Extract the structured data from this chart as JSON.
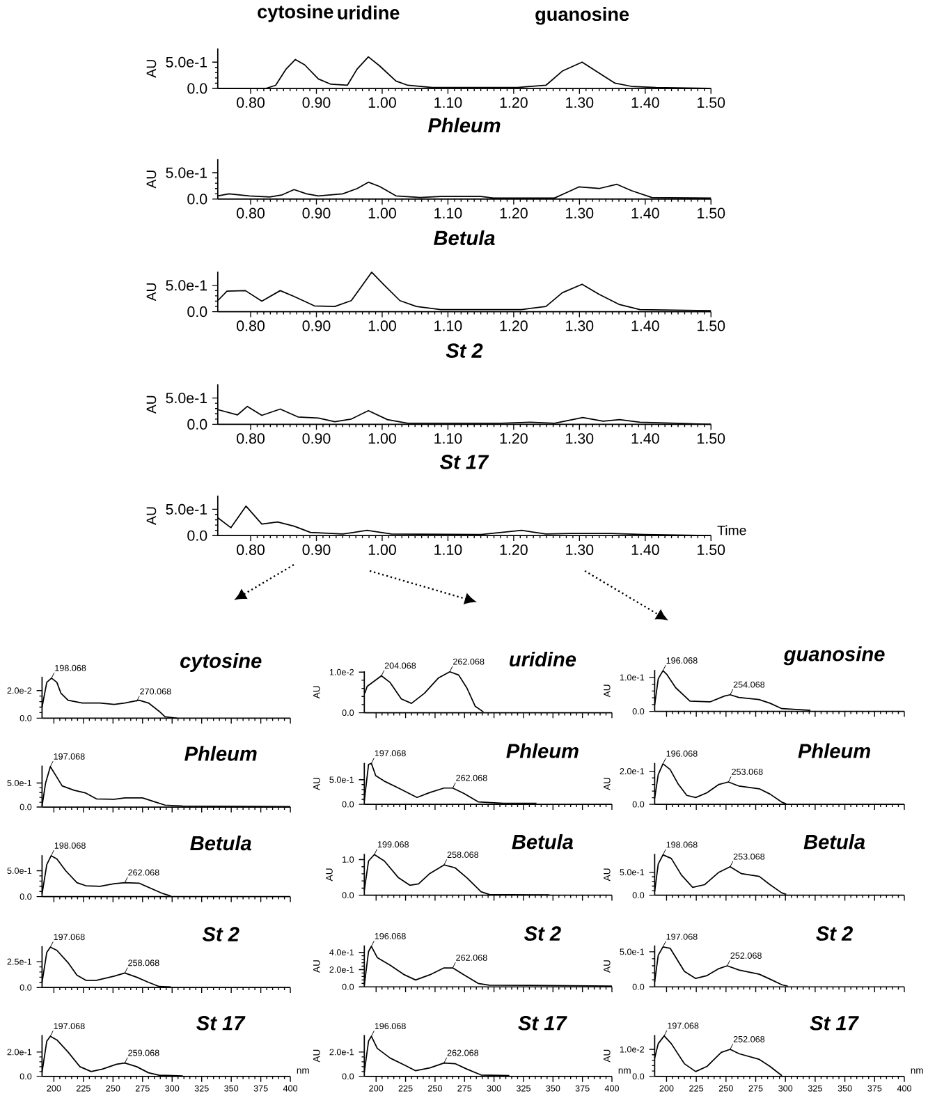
{
  "chart_data": [
    {
      "type": "line",
      "ylabel": "AU",
      "color": "#000000",
      "xlim": [
        0.75,
        1.5
      ],
      "ylim": [
        0,
        0.76
      ],
      "xticks": [
        {
          "value": 0.8,
          "label": "0.80"
        },
        {
          "value": 0.9,
          "label": "0.90"
        },
        {
          "value": 1.0,
          "label": "1.00"
        },
        {
          "value": 1.1,
          "label": "1.10"
        },
        {
          "value": 1.2,
          "label": "1.20"
        },
        {
          "value": 1.3,
          "label": "1.30"
        },
        {
          "value": 1.4,
          "label": "1.40"
        },
        {
          "value": 1.5,
          "label": "1.50"
        }
      ],
      "yticks": [
        {
          "value": 0,
          "label": "0.0"
        },
        {
          "value": 0.5,
          "label": "5.0e-1"
        }
      ],
      "annotations": [
        {
          "text": "cytosine",
          "x": 0.868,
          "y": 0.55
        },
        {
          "text": "uridine",
          "x": 0.979,
          "y": 0.6
        },
        {
          "text": "guanosine",
          "x": 1.304,
          "y": 0.5
        }
      ],
      "x": [
        0.75,
        0.823,
        0.838,
        0.854,
        0.868,
        0.882,
        0.903,
        0.922,
        0.947,
        0.962,
        0.979,
        0.996,
        1.021,
        1.039,
        1.076,
        1.206,
        1.249,
        1.274,
        1.304,
        1.33,
        1.354,
        1.379,
        1.416,
        1.5
      ],
      "values": [
        0,
        0,
        0.06,
        0.37,
        0.55,
        0.45,
        0.18,
        0.08,
        0.06,
        0.37,
        0.6,
        0.43,
        0.14,
        0.06,
        0.02,
        0.02,
        0.06,
        0.33,
        0.5,
        0.29,
        0.1,
        0.04,
        0.02,
        0
      ]
    },
    {
      "type": "line",
      "title": "*Phleum*",
      "ylabel": "AU",
      "color": "#000000",
      "xlim": [
        0.75,
        1.5
      ],
      "ylim": [
        0,
        0.76
      ],
      "xticks": [
        {
          "value": 0.8,
          "label": "0.80"
        },
        {
          "value": 0.9,
          "label": "0.90"
        },
        {
          "value": 1.0,
          "label": "1.00"
        },
        {
          "value": 1.1,
          "label": "1.10"
        },
        {
          "value": 1.2,
          "label": "1.20"
        },
        {
          "value": 1.3,
          "label": "1.30"
        },
        {
          "value": 1.4,
          "label": "1.40"
        },
        {
          "value": 1.5,
          "label": "1.50"
        }
      ],
      "yticks": [
        {
          "value": 0,
          "label": "0.0"
        },
        {
          "value": 0.5,
          "label": "5.0e-1"
        }
      ],
      "x": [
        0.75,
        0.767,
        0.798,
        0.829,
        0.848,
        0.866,
        0.885,
        0.903,
        0.94,
        0.962,
        0.979,
        0.996,
        1.021,
        1.058,
        1.089,
        1.15,
        1.169,
        1.262,
        1.28,
        1.299,
        1.33,
        1.357,
        1.379,
        1.41,
        1.5
      ],
      "values": [
        0.06,
        0.1,
        0.06,
        0.04,
        0.08,
        0.18,
        0.1,
        0.06,
        0.1,
        0.2,
        0.32,
        0.24,
        0.06,
        0.03,
        0.05,
        0.05,
        0.02,
        0.02,
        0.12,
        0.23,
        0.2,
        0.28,
        0.16,
        0.03,
        0.02
      ]
    },
    {
      "type": "line",
      "title": "*Betula*",
      "ylabel": "AU",
      "color": "#000000",
      "xlim": [
        0.75,
        1.5
      ],
      "ylim": [
        0,
        0.76
      ],
      "xticks": [
        {
          "value": 0.8,
          "label": "0.80"
        },
        {
          "value": 0.9,
          "label": "0.90"
        },
        {
          "value": 1.0,
          "label": "1.00"
        },
        {
          "value": 1.1,
          "label": "1.10"
        },
        {
          "value": 1.2,
          "label": "1.20"
        },
        {
          "value": 1.3,
          "label": "1.30"
        },
        {
          "value": 1.4,
          "label": "1.40"
        },
        {
          "value": 1.5,
          "label": "1.50"
        }
      ],
      "yticks": [
        {
          "value": 0,
          "label": "0.0"
        },
        {
          "value": 0.5,
          "label": "5.0e-1"
        }
      ],
      "x": [
        0.75,
        0.764,
        0.792,
        0.817,
        0.845,
        0.866,
        0.897,
        0.928,
        0.953,
        0.971,
        0.984,
        1.002,
        1.027,
        1.052,
        1.089,
        1.212,
        1.249,
        1.274,
        1.304,
        1.33,
        1.36,
        1.392,
        1.5
      ],
      "values": [
        0.21,
        0.39,
        0.4,
        0.2,
        0.4,
        0.29,
        0.11,
        0.1,
        0.21,
        0.52,
        0.75,
        0.52,
        0.21,
        0.1,
        0.04,
        0.04,
        0.1,
        0.36,
        0.52,
        0.33,
        0.14,
        0.04,
        0.02
      ]
    },
    {
      "type": "line",
      "title": "*St 2*",
      "ylabel": "AU",
      "color": "#000000",
      "xlim": [
        0.75,
        1.5
      ],
      "ylim": [
        0,
        0.76
      ],
      "xticks": [
        {
          "value": 0.8,
          "label": "0.80"
        },
        {
          "value": 0.9,
          "label": "0.90"
        },
        {
          "value": 1.0,
          "label": "1.00"
        },
        {
          "value": 1.1,
          "label": "1.10"
        },
        {
          "value": 1.2,
          "label": "1.20"
        },
        {
          "value": 1.3,
          "label": "1.30"
        },
        {
          "value": 1.4,
          "label": "1.40"
        },
        {
          "value": 1.5,
          "label": "1.50"
        }
      ],
      "yticks": [
        {
          "value": 0,
          "label": "0.0"
        },
        {
          "value": 0.5,
          "label": "5.0e-1"
        }
      ],
      "x": [
        0.75,
        0.78,
        0.795,
        0.817,
        0.845,
        0.872,
        0.903,
        0.928,
        0.953,
        0.979,
        1.008,
        1.039,
        1.181,
        1.225,
        1.262,
        1.305,
        1.336,
        1.361,
        1.392,
        1.447,
        1.5
      ],
      "values": [
        0.28,
        0.18,
        0.34,
        0.17,
        0.29,
        0.14,
        0.12,
        0.05,
        0.1,
        0.26,
        0.09,
        0.02,
        0.02,
        0.04,
        0.02,
        0.13,
        0.06,
        0.09,
        0.04,
        0.02,
        0
      ]
    },
    {
      "type": "line",
      "title": "*St 17*",
      "xlabel": "Time",
      "ylabel": "AU",
      "color": "#000000",
      "xlim": [
        0.75,
        1.5
      ],
      "ylim": [
        0,
        0.76
      ],
      "xticks": [
        {
          "value": 0.8,
          "label": "0.80"
        },
        {
          "value": 0.9,
          "label": "0.90"
        },
        {
          "value": 1.0,
          "label": "1.00"
        },
        {
          "value": 1.1,
          "label": "1.10"
        },
        {
          "value": 1.2,
          "label": "1.20"
        },
        {
          "value": 1.3,
          "label": "1.30"
        },
        {
          "value": 1.4,
          "label": "1.40"
        },
        {
          "value": 1.5,
          "label": "1.50"
        }
      ],
      "yticks": [
        {
          "value": 0,
          "label": "0.0"
        },
        {
          "value": 0.5,
          "label": "5.0e-1"
        }
      ],
      "x": [
        0.75,
        0.77,
        0.793,
        0.817,
        0.841,
        0.866,
        0.891,
        0.94,
        0.977,
        1.014,
        1.15,
        1.212,
        1.249,
        1.286,
        1.348,
        1.398,
        1.5
      ],
      "values": [
        0.34,
        0.15,
        0.56,
        0.22,
        0.26,
        0.18,
        0.06,
        0.03,
        0.1,
        0.03,
        0.02,
        0.1,
        0.03,
        0.04,
        0.04,
        0.02,
        0
      ]
    },
    {
      "type": "line",
      "title": "*cytosine*",
      "tick_labels": "y",
      "color": "#000000",
      "xlim": [
        190,
        400
      ],
      "ylim": [
        0,
        0.03
      ],
      "xticks": [
        200,
        225,
        250,
        275,
        300,
        325,
        350,
        375,
        400
      ],
      "yticks": [
        {
          "value": 0,
          "label": "0.0"
        },
        {
          "value": 0.02,
          "label": "2.0e-2"
        }
      ],
      "annotations": [
        {
          "text": "198.068",
          "x": 198,
          "y": 0.029
        },
        {
          "text": "270.068",
          "x": 270,
          "y": 0.012
        }
      ],
      "x": [
        190,
        194,
        198,
        202.5,
        206,
        212,
        224,
        239,
        251,
        260,
        272,
        280,
        289,
        294,
        304
      ],
      "values": [
        0.008,
        0.026,
        0.029,
        0.026,
        0.018,
        0.013,
        0.011,
        0.011,
        0.01,
        0.011,
        0.013,
        0.011,
        0.005,
        0.001,
        0
      ]
    },
    {
      "type": "line",
      "title": "*uridine*",
      "ylabel": "AU",
      "tick_labels": "y",
      "color": "#000000",
      "xlim": [
        190,
        400
      ],
      "ylim": [
        0,
        0.0102
      ],
      "xticks": [
        200,
        225,
        250,
        275,
        300,
        325,
        350,
        375,
        400
      ],
      "yticks": [
        {
          "value": 0,
          "label": "0.0"
        },
        {
          "value": 0.01,
          "label": "1.0e-2"
        }
      ],
      "annotations": [
        {
          "text": "204.068",
          "x": 204.5,
          "y": 0.0091
        },
        {
          "text": "262.068",
          "x": 262.5,
          "y": 0.0101
        }
      ],
      "x": [
        190.5,
        192.4,
        204.5,
        211.7,
        221.4,
        230,
        241,
        253,
        262.5,
        270,
        277,
        284,
        291
      ],
      "values": [
        0.0048,
        0.0065,
        0.0091,
        0.0075,
        0.0034,
        0.0023,
        0.0048,
        0.0086,
        0.0101,
        0.0093,
        0.0061,
        0.0016,
        0.0002
      ]
    },
    {
      "type": "line",
      "title": "*guanosine*",
      "ylabel": "AU",
      "tick_labels": "y",
      "color": "#000000",
      "xlim": [
        190,
        400
      ],
      "ylim": [
        0,
        0.122
      ],
      "xticks": [
        200,
        225,
        250,
        275,
        300,
        325,
        350,
        375,
        400
      ],
      "yticks": [
        {
          "value": 0,
          "label": "0.0"
        },
        {
          "value": 0.1,
          "label": "1.0e-1"
        }
      ],
      "annotations": [
        {
          "text": "196.068",
          "x": 197,
          "y": 0.12
        },
        {
          "text": "254.068",
          "x": 253.5,
          "y": 0.049
        }
      ],
      "x": [
        190,
        193,
        197,
        200.4,
        207.6,
        219.7,
        236.6,
        248.7,
        253.5,
        260.8,
        277.7,
        287,
        297,
        321
      ],
      "values": [
        0.019,
        0.096,
        0.12,
        0.108,
        0.07,
        0.03,
        0.028,
        0.045,
        0.049,
        0.041,
        0.035,
        0.024,
        0.008,
        0.003
      ]
    },
    {
      "type": "line",
      "title": "*Phleum*",
      "tick_labels": "y",
      "color": "#000000",
      "xlim": [
        190,
        400
      ],
      "ylim": [
        0,
        0.86
      ],
      "xticks": [
        200,
        225,
        250,
        275,
        300,
        325,
        350,
        375,
        400
      ],
      "yticks": [
        {
          "value": 0,
          "label": "0.0"
        },
        {
          "value": 0.5,
          "label": "5.0e-1"
        }
      ],
      "annotations": [
        {
          "text": "197.068",
          "x": 197,
          "y": 0.84
        }
      ],
      "x": [
        190,
        193,
        197,
        202.5,
        207,
        217,
        227,
        236,
        251,
        260,
        275,
        285,
        294,
        309,
        400
      ],
      "values": [
        0.02,
        0.5,
        0.84,
        0.62,
        0.44,
        0.35,
        0.29,
        0.17,
        0.16,
        0.19,
        0.19,
        0.11,
        0.04,
        0.02,
        0.01
      ]
    },
    {
      "type": "line",
      "title": "*Phleum*",
      "ylabel": "AU",
      "tick_labels": "y",
      "color": "#000000",
      "xlim": [
        190,
        400
      ],
      "ylim": [
        0,
        0.84
      ],
      "xticks": [
        200,
        225,
        250,
        275,
        300,
        325,
        350,
        375,
        400
      ],
      "yticks": [
        {
          "value": 0,
          "label": "0.0"
        },
        {
          "value": 0.5,
          "label": "5.0e-1"
        }
      ],
      "annotations": [
        {
          "text": "197.068",
          "x": 196,
          "y": 0.83
        },
        {
          "text": "262.068",
          "x": 265,
          "y": 0.33
        }
      ],
      "x": [
        190,
        193.6,
        196,
        199.7,
        207,
        219,
        234.7,
        245.6,
        257.6,
        265,
        274.5,
        286.6,
        308,
        336
      ],
      "values": [
        0.07,
        0.81,
        0.83,
        0.58,
        0.47,
        0.33,
        0.14,
        0.24,
        0.33,
        0.33,
        0.22,
        0.05,
        0.02,
        0.02
      ]
    },
    {
      "type": "line",
      "title": "*Phleum*",
      "ylabel": "AU",
      "tick_labels": "y",
      "color": "#000000",
      "xlim": [
        190,
        400
      ],
      "ylim": [
        0,
        0.25
      ],
      "xticks": [
        200,
        225,
        250,
        275,
        300,
        325,
        350,
        375,
        400
      ],
      "yticks": [
        {
          "value": 0,
          "label": "0.0"
        },
        {
          "value": 0.2,
          "label": "2.0e-1"
        }
      ],
      "annotations": [
        {
          "text": "196.068",
          "x": 197,
          "y": 0.245
        },
        {
          "text": "253.068",
          "x": 252,
          "y": 0.135
        }
      ],
      "x": [
        190,
        193,
        197,
        203,
        210,
        217,
        224.5,
        234,
        244,
        252,
        261,
        278,
        287,
        297,
        300.6
      ],
      "values": [
        0.037,
        0.18,
        0.245,
        0.21,
        0.12,
        0.054,
        0.041,
        0.07,
        0.12,
        0.135,
        0.11,
        0.094,
        0.062,
        0.013,
        0.003
      ]
    },
    {
      "type": "line",
      "title": "*Betula*",
      "tick_labels": "y",
      "color": "#000000",
      "xlim": [
        190,
        400
      ],
      "ylim": [
        0,
        0.8
      ],
      "xticks": [
        200,
        225,
        250,
        275,
        300,
        325,
        350,
        375,
        400
      ],
      "yticks": [
        {
          "value": 0,
          "label": "0.0"
        },
        {
          "value": 0.5,
          "label": "5.0e-1"
        }
      ],
      "annotations": [
        {
          "text": "198.068",
          "x": 197.7,
          "y": 0.79
        },
        {
          "text": "262.068",
          "x": 260,
          "y": 0.27
        }
      ],
      "x": [
        190,
        194,
        197.7,
        202.5,
        210,
        219.5,
        227,
        239,
        251,
        260,
        272,
        282,
        292,
        299
      ],
      "values": [
        0.05,
        0.62,
        0.79,
        0.73,
        0.5,
        0.27,
        0.21,
        0.2,
        0.25,
        0.27,
        0.26,
        0.16,
        0.06,
        0.01
      ]
    },
    {
      "type": "line",
      "title": "*Betula*",
      "ylabel": "AU",
      "tick_labels": "y",
      "color": "#000000",
      "xlim": [
        190,
        400
      ],
      "ylim": [
        0,
        1.16
      ],
      "xticks": [
        200,
        225,
        250,
        275,
        300,
        325,
        350,
        375,
        400
      ],
      "yticks": [
        {
          "value": 0,
          "label": "0.0"
        },
        {
          "value": 1.0,
          "label": "1.0"
        }
      ],
      "annotations": [
        {
          "text": "199.068",
          "x": 198.5,
          "y": 1.14
        },
        {
          "text": "258.068",
          "x": 257.6,
          "y": 0.85
        }
      ],
      "x": [
        190,
        193.6,
        198.5,
        207,
        219,
        228.6,
        236,
        245.6,
        257.6,
        267,
        277,
        289,
        296,
        347
      ],
      "values": [
        0.14,
        0.96,
        1.14,
        0.96,
        0.49,
        0.28,
        0.32,
        0.61,
        0.85,
        0.77,
        0.49,
        0.1,
        0.02,
        0.01
      ]
    },
    {
      "type": "line",
      "title": "*Betula*",
      "ylabel": "AU",
      "tick_labels": "y",
      "color": "#000000",
      "xlim": [
        190,
        400
      ],
      "ylim": [
        0,
        0.9
      ],
      "xticks": [
        200,
        225,
        250,
        275,
        300,
        325,
        350,
        375,
        400
      ],
      "yticks": [
        {
          "value": 0,
          "label": "0.0"
        },
        {
          "value": 0.5,
          "label": "5.0e-1"
        }
      ],
      "annotations": [
        {
          "text": "198.068",
          "x": 197,
          "y": 0.88
        },
        {
          "text": "253.068",
          "x": 253.5,
          "y": 0.62
        }
      ],
      "x": [
        190,
        193,
        197,
        204,
        212.5,
        222,
        232,
        244,
        253.5,
        263,
        278,
        287,
        297,
        300.6
      ],
      "values": [
        0.08,
        0.68,
        0.88,
        0.8,
        0.44,
        0.17,
        0.23,
        0.5,
        0.62,
        0.47,
        0.41,
        0.23,
        0.05,
        0.02
      ]
    },
    {
      "type": "line",
      "title": "*St 2*",
      "tick_labels": "y",
      "color": "#000000",
      "xlim": [
        190,
        400
      ],
      "ylim": [
        0,
        0.4
      ],
      "xticks": [
        200,
        225,
        250,
        275,
        300,
        325,
        350,
        375,
        400
      ],
      "yticks": [
        {
          "value": 0,
          "label": "0.0"
        },
        {
          "value": 0.25,
          "label": "2.5e-1"
        }
      ],
      "annotations": [
        {
          "text": "197.068",
          "x": 197,
          "y": 0.39
        },
        {
          "text": "258.068",
          "x": 260,
          "y": 0.14
        }
      ],
      "x": [
        190,
        194,
        197,
        202.5,
        212,
        219.5,
        227,
        236,
        251,
        260,
        270,
        280,
        289,
        299
      ],
      "values": [
        0.05,
        0.34,
        0.39,
        0.36,
        0.24,
        0.12,
        0.07,
        0.07,
        0.11,
        0.14,
        0.1,
        0.05,
        0.01,
        0.005
      ]
    },
    {
      "type": "line",
      "title": "*St 2*",
      "ylabel": "AU",
      "tick_labels": "y",
      "color": "#000000",
      "xlim": [
        190,
        400
      ],
      "ylim": [
        0,
        0.48
      ],
      "xticks": [
        200,
        225,
        250,
        275,
        300,
        325,
        350,
        375,
        400
      ],
      "yticks": [
        {
          "value": 0,
          "label": "0.0"
        },
        {
          "value": 0.2,
          "label": "2.0e-1"
        },
        {
          "value": 0.4,
          "label": "4.0e-1"
        }
      ],
      "annotations": [
        {
          "text": "196.068",
          "x": 196,
          "y": 0.47
        },
        {
          "text": "262.068",
          "x": 265,
          "y": 0.22
        }
      ],
      "x": [
        190,
        193.6,
        196,
        201,
        212,
        224,
        233.5,
        245.6,
        257.6,
        265,
        274.5,
        286.6,
        296,
        400
      ],
      "values": [
        0.02,
        0.41,
        0.47,
        0.34,
        0.25,
        0.14,
        0.08,
        0.14,
        0.22,
        0.22,
        0.14,
        0.04,
        0.02,
        0.01
      ]
    },
    {
      "type": "line",
      "title": "*St 2*",
      "ylabel": "AU",
      "tick_labels": "y",
      "color": "#000000",
      "xlim": [
        190,
        400
      ],
      "ylim": [
        0,
        0.59
      ],
      "xticks": [
        200,
        225,
        250,
        275,
        300,
        325,
        350,
        375,
        400
      ],
      "yticks": [
        {
          "value": 0,
          "label": "0.0"
        },
        {
          "value": 0.5,
          "label": "5.0e-1"
        }
      ],
      "annotations": [
        {
          "text": "197.068",
          "x": 197,
          "y": 0.57
        },
        {
          "text": "252.068",
          "x": 251,
          "y": 0.3
        }
      ],
      "x": [
        190,
        193,
        197,
        203,
        215,
        224.5,
        234,
        244,
        251,
        261,
        278,
        287,
        297,
        302
      ],
      "values": [
        0.07,
        0.45,
        0.57,
        0.55,
        0.22,
        0.12,
        0.16,
        0.26,
        0.3,
        0.24,
        0.18,
        0.11,
        0.03,
        0.01
      ]
    },
    {
      "type": "line",
      "title": "*St 17*",
      "xlabel": "nm",
      "color": "#000000",
      "xlim": [
        190,
        400
      ],
      "ylim": [
        0,
        0.34
      ],
      "xticks": [
        200,
        225,
        250,
        275,
        300,
        325,
        350,
        375,
        400
      ],
      "yticks": [
        {
          "value": 0,
          "label": "0.0"
        },
        {
          "value": 0.2,
          "label": "2.0e-1"
        }
      ],
      "annotations": [
        {
          "text": "197.068",
          "x": 197,
          "y": 0.33
        },
        {
          "text": "259.068",
          "x": 260,
          "y": 0.11
        }
      ],
      "x": [
        190,
        194,
        197,
        202.5,
        212,
        222,
        231.5,
        241,
        253,
        260,
        270,
        280,
        289,
        309
      ],
      "values": [
        0.035,
        0.29,
        0.33,
        0.3,
        0.2,
        0.08,
        0.04,
        0.06,
        0.1,
        0.11,
        0.08,
        0.03,
        0.01,
        0.005
      ]
    },
    {
      "type": "line",
      "title": "*St 17*",
      "xlabel": "nm",
      "ylabel": "AU",
      "color": "#000000",
      "xlim": [
        190,
        400
      ],
      "ylim": [
        0,
        0.34
      ],
      "xticks": [
        200,
        225,
        250,
        275,
        300,
        325,
        350,
        375,
        400
      ],
      "yticks": [
        {
          "value": 0,
          "label": "0.0"
        },
        {
          "value": 0.2,
          "label": "2.0e-1"
        }
      ],
      "annotations": [
        {
          "text": "196.068",
          "x": 196,
          "y": 0.33
        },
        {
          "text": "262.068",
          "x": 257.6,
          "y": 0.11
        }
      ],
      "x": [
        190,
        193.6,
        196,
        201,
        212,
        224,
        233.5,
        245.6,
        257.6,
        267,
        277,
        289,
        313
      ],
      "values": [
        0.035,
        0.29,
        0.33,
        0.23,
        0.15,
        0.094,
        0.047,
        0.07,
        0.11,
        0.105,
        0.06,
        0.012,
        0.007
      ]
    },
    {
      "type": "line",
      "title": "*St 17*",
      "xlabel": "nm",
      "ylabel": "AU",
      "color": "#000000",
      "xlim": [
        190,
        400
      ],
      "ylim": [
        0,
        0.0153
      ],
      "xticks": [
        200,
        225,
        250,
        275,
        300,
        325,
        350,
        375,
        400
      ],
      "yticks": [
        {
          "value": 0,
          "label": "0.0"
        },
        {
          "value": 0.01,
          "label": "1.0e-2"
        }
      ],
      "annotations": [
        {
          "text": "197.068",
          "x": 198,
          "y": 0.015
        },
        {
          "text": "252.068",
          "x": 253.5,
          "y": 0.01
        }
      ],
      "x": [
        190,
        193,
        198,
        204,
        215,
        224.5,
        234,
        246,
        253.5,
        261,
        278,
        287,
        297
      ],
      "values": [
        0.0068,
        0.0121,
        0.015,
        0.0121,
        0.0047,
        0.0018,
        0.0037,
        0.0089,
        0.01,
        0.0084,
        0.0063,
        0.0037,
        0.0003
      ]
    }
  ]
}
